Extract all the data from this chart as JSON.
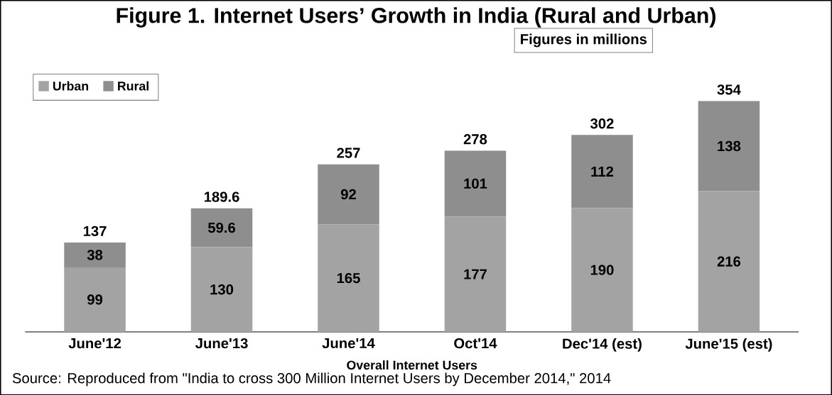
{
  "chart_data": {
    "type": "bar",
    "stacked": true,
    "title": "Figure 1. Internet Users’ Growth in India (Rural and Urban)",
    "xlabel": "Overall Internet Users",
    "categories": [
      "June'12",
      "June'13",
      "June'14",
      "Oct'14",
      "Dec'14 (est)",
      "June'15 (est)"
    ],
    "series": [
      {
        "name": "Urban",
        "color": "#a3a3a3",
        "values": [
          99,
          130,
          165,
          177,
          190,
          216
        ]
      },
      {
        "name": "Rural",
        "color": "#8e8e8e",
        "values": [
          38,
          59.6,
          92,
          101,
          112,
          138
        ]
      }
    ],
    "data_labels": true,
    "totals": [
      "137",
      "189.6",
      "257",
      "278",
      "302",
      "354"
    ],
    "legend": "top left",
    "annotations": [
      "Figures in millions",
      "Source: Reproduced from \"India to cross 300 Million Internet Users by December 2014,\" 2014"
    ]
  }
}
